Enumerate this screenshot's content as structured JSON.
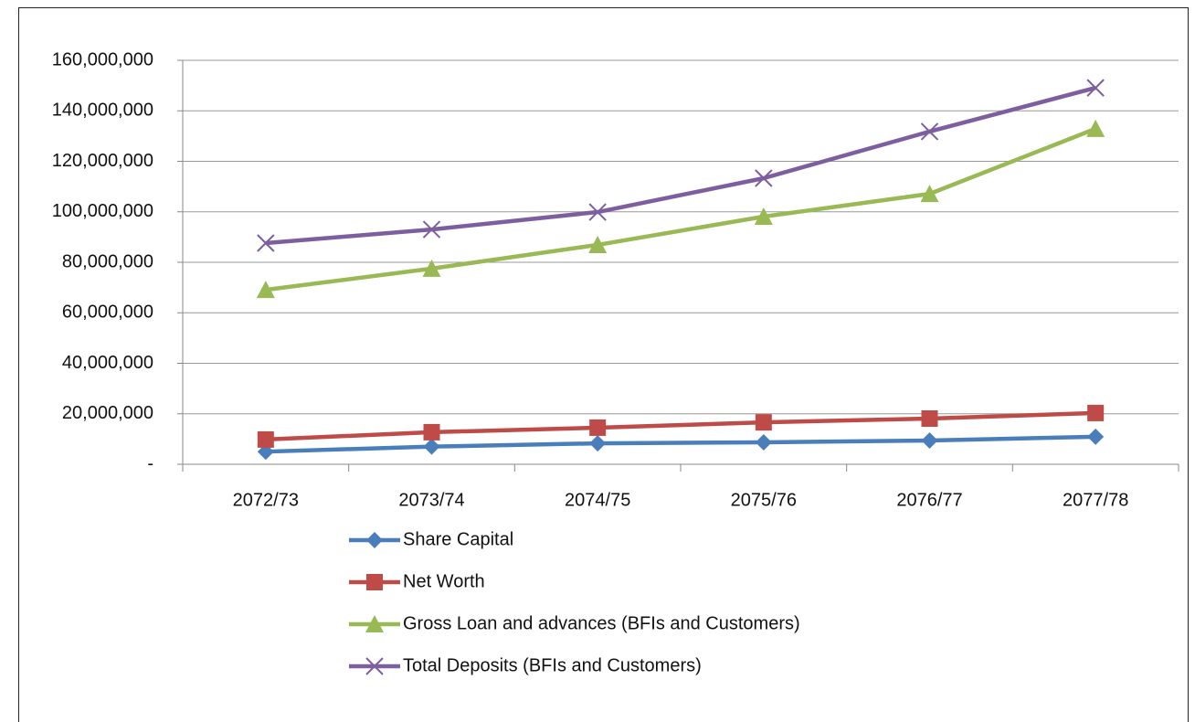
{
  "chart_data": {
    "type": "line",
    "categories": [
      "2072/73",
      "2073/74",
      "2074/75",
      "2075/76",
      "2076/77",
      "2077/78"
    ],
    "series": [
      {
        "name": "Share Capital",
        "color": "#4a7ebb",
        "marker": "diamond",
        "values": [
          5000000,
          7000000,
          8300000,
          8700000,
          9400000,
          10900000
        ]
      },
      {
        "name": "Net Worth",
        "color": "#be4b48",
        "marker": "square",
        "values": [
          9800000,
          12700000,
          14500000,
          16600000,
          18100000,
          20300000
        ]
      },
      {
        "name": "Gross Loan and advances (BFIs and Customers)",
        "color": "#98b954",
        "marker": "triangle",
        "values": [
          69100000,
          77500000,
          86900000,
          98100000,
          107100000,
          132900000
        ]
      },
      {
        "name": "Total Deposits (BFIs and Customers)",
        "color": "#7d5fa0",
        "marker": "x",
        "values": [
          87600000,
          93000000,
          99900000,
          113300000,
          131800000,
          149100000
        ]
      }
    ],
    "ylim": [
      0,
      160000000
    ],
    "yticks": [
      {
        "value": 0,
        "label": "-"
      },
      {
        "value": 20000000,
        "label": "20,000,000"
      },
      {
        "value": 40000000,
        "label": "40,000,000"
      },
      {
        "value": 60000000,
        "label": "60,000,000"
      },
      {
        "value": 80000000,
        "label": "80,000,000"
      },
      {
        "value": 100000000,
        "label": "100,000,000"
      },
      {
        "value": 120000000,
        "label": "120,000,000"
      },
      {
        "value": 140000000,
        "label": "140,000,000"
      },
      {
        "value": 160000000,
        "label": "160,000,000"
      }
    ],
    "grid": true,
    "legend": "bottom"
  }
}
